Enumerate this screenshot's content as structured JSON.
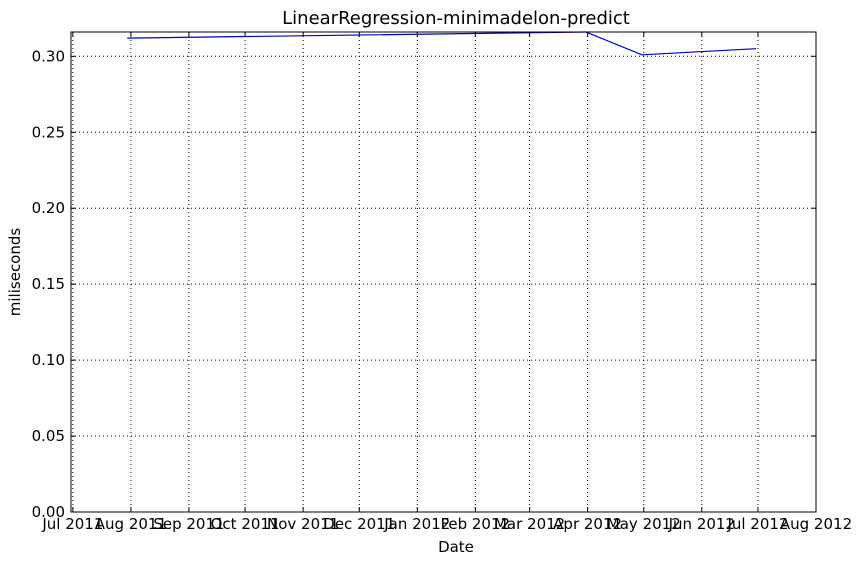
{
  "chart_data": {
    "type": "line",
    "title": "LinearRegression-minimadelon-predict",
    "xlabel": "Date",
    "ylabel": "miliseconds",
    "x_ticks": [
      "Jul 2011",
      "Aug 2011",
      "Sep 2011",
      "Oct 2011",
      "Nov 2011",
      "Dec 2011",
      "Jan 2012",
      "Feb 2012",
      "Mar 2012",
      "Apr 2012",
      "May 2012",
      "Jun 2012",
      "Jul 2012",
      "Aug 2012"
    ],
    "x_tick_dates": [
      "2011-07-01",
      "2011-08-01",
      "2011-09-01",
      "2011-10-01",
      "2011-11-01",
      "2011-12-01",
      "2012-01-01",
      "2012-02-01",
      "2012-03-01",
      "2012-04-01",
      "2012-05-01",
      "2012-06-01",
      "2012-07-01",
      "2012-08-01"
    ],
    "y_ticks": [
      "0.00",
      "0.05",
      "0.10",
      "0.15",
      "0.20",
      "0.25",
      "0.30"
    ],
    "xlim": [
      "2011-06-30",
      "2012-08-01"
    ],
    "ylim": [
      0,
      0.316
    ],
    "grid": true,
    "color": "#0000cc",
    "series": [
      {
        "x": [
          "2011-07-30",
          "2012-03-31",
          "2012-04-30",
          "2012-06-30"
        ],
        "y": [
          0.312,
          0.316,
          0.301,
          0.305
        ]
      }
    ]
  }
}
